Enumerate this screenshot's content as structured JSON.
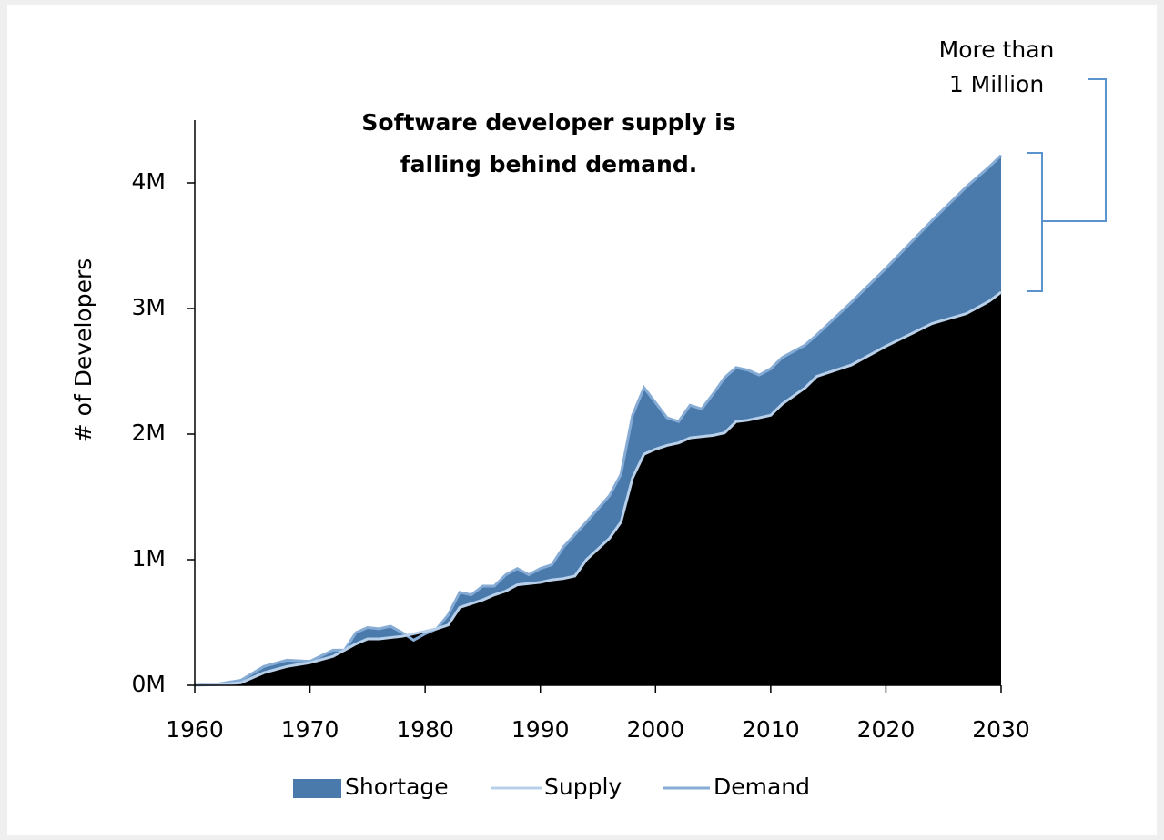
{
  "chart_data": {
    "type": "area",
    "title": [
      "Software developer supply is",
      "falling behind demand."
    ],
    "annotation": [
      "More than",
      "1 Million"
    ],
    "ylabel": "# of Developers",
    "xlim": [
      1960,
      2030
    ],
    "xticks": [
      1960,
      1970,
      1980,
      1990,
      2000,
      2010,
      2020,
      2030
    ],
    "ylim": [
      0,
      4.5
    ],
    "yticks": [
      {
        "value": 0,
        "label": "0M"
      },
      {
        "value": 1,
        "label": "1M"
      },
      {
        "value": 2,
        "label": "2M"
      },
      {
        "value": 3,
        "label": "3M"
      },
      {
        "value": 4,
        "label": "4M"
      }
    ],
    "shortage": {
      "name": "Shortage",
      "color": "#4a7aab"
    },
    "x": [
      1960,
      1962,
      1964,
      1966,
      1968,
      1970,
      1972,
      1973,
      1974,
      1975,
      1976,
      1977,
      1978,
      1979,
      1980,
      1981,
      1982,
      1983,
      1984,
      1985,
      1986,
      1987,
      1988,
      1989,
      1990,
      1991,
      1992,
      1993,
      1994,
      1996,
      1997,
      1998,
      1999,
      2000,
      2001,
      2002,
      2003,
      2004,
      2005,
      2006,
      2007,
      2008,
      2009,
      2010,
      2011,
      2013,
      2014,
      2017,
      2020,
      2024,
      2027,
      2029,
      2030
    ],
    "series": [
      {
        "name": "Supply",
        "color": "#b8d0ea",
        "fill": "#000000",
        "values": [
          0,
          0.005,
          0.02,
          0.1,
          0.15,
          0.18,
          0.23,
          0.28,
          0.33,
          0.37,
          0.37,
          0.38,
          0.39,
          0.41,
          0.43,
          0.45,
          0.48,
          0.62,
          0.65,
          0.68,
          0.72,
          0.75,
          0.8,
          0.81,
          0.82,
          0.84,
          0.85,
          0.87,
          1.0,
          1.17,
          1.3,
          1.65,
          1.84,
          1.88,
          1.91,
          1.93,
          1.97,
          1.98,
          1.99,
          2.01,
          2.1,
          2.11,
          2.13,
          2.15,
          2.24,
          2.37,
          2.46,
          2.55,
          2.7,
          2.88,
          2.96,
          3.06,
          3.13
        ]
      },
      {
        "name": "Demand",
        "color": "#86acd6",
        "values": [
          0,
          0.01,
          0.04,
          0.15,
          0.2,
          0.19,
          0.28,
          0.28,
          0.42,
          0.46,
          0.45,
          0.47,
          0.42,
          0.36,
          0.41,
          0.45,
          0.56,
          0.74,
          0.72,
          0.79,
          0.79,
          0.88,
          0.93,
          0.88,
          0.93,
          0.96,
          1.1,
          1.2,
          1.3,
          1.51,
          1.68,
          2.15,
          2.37,
          2.25,
          2.13,
          2.1,
          2.23,
          2.2,
          2.32,
          2.45,
          2.53,
          2.51,
          2.47,
          2.52,
          2.61,
          2.71,
          2.79,
          3.05,
          3.32,
          3.7,
          3.97,
          4.13,
          4.22
        ]
      }
    ]
  }
}
